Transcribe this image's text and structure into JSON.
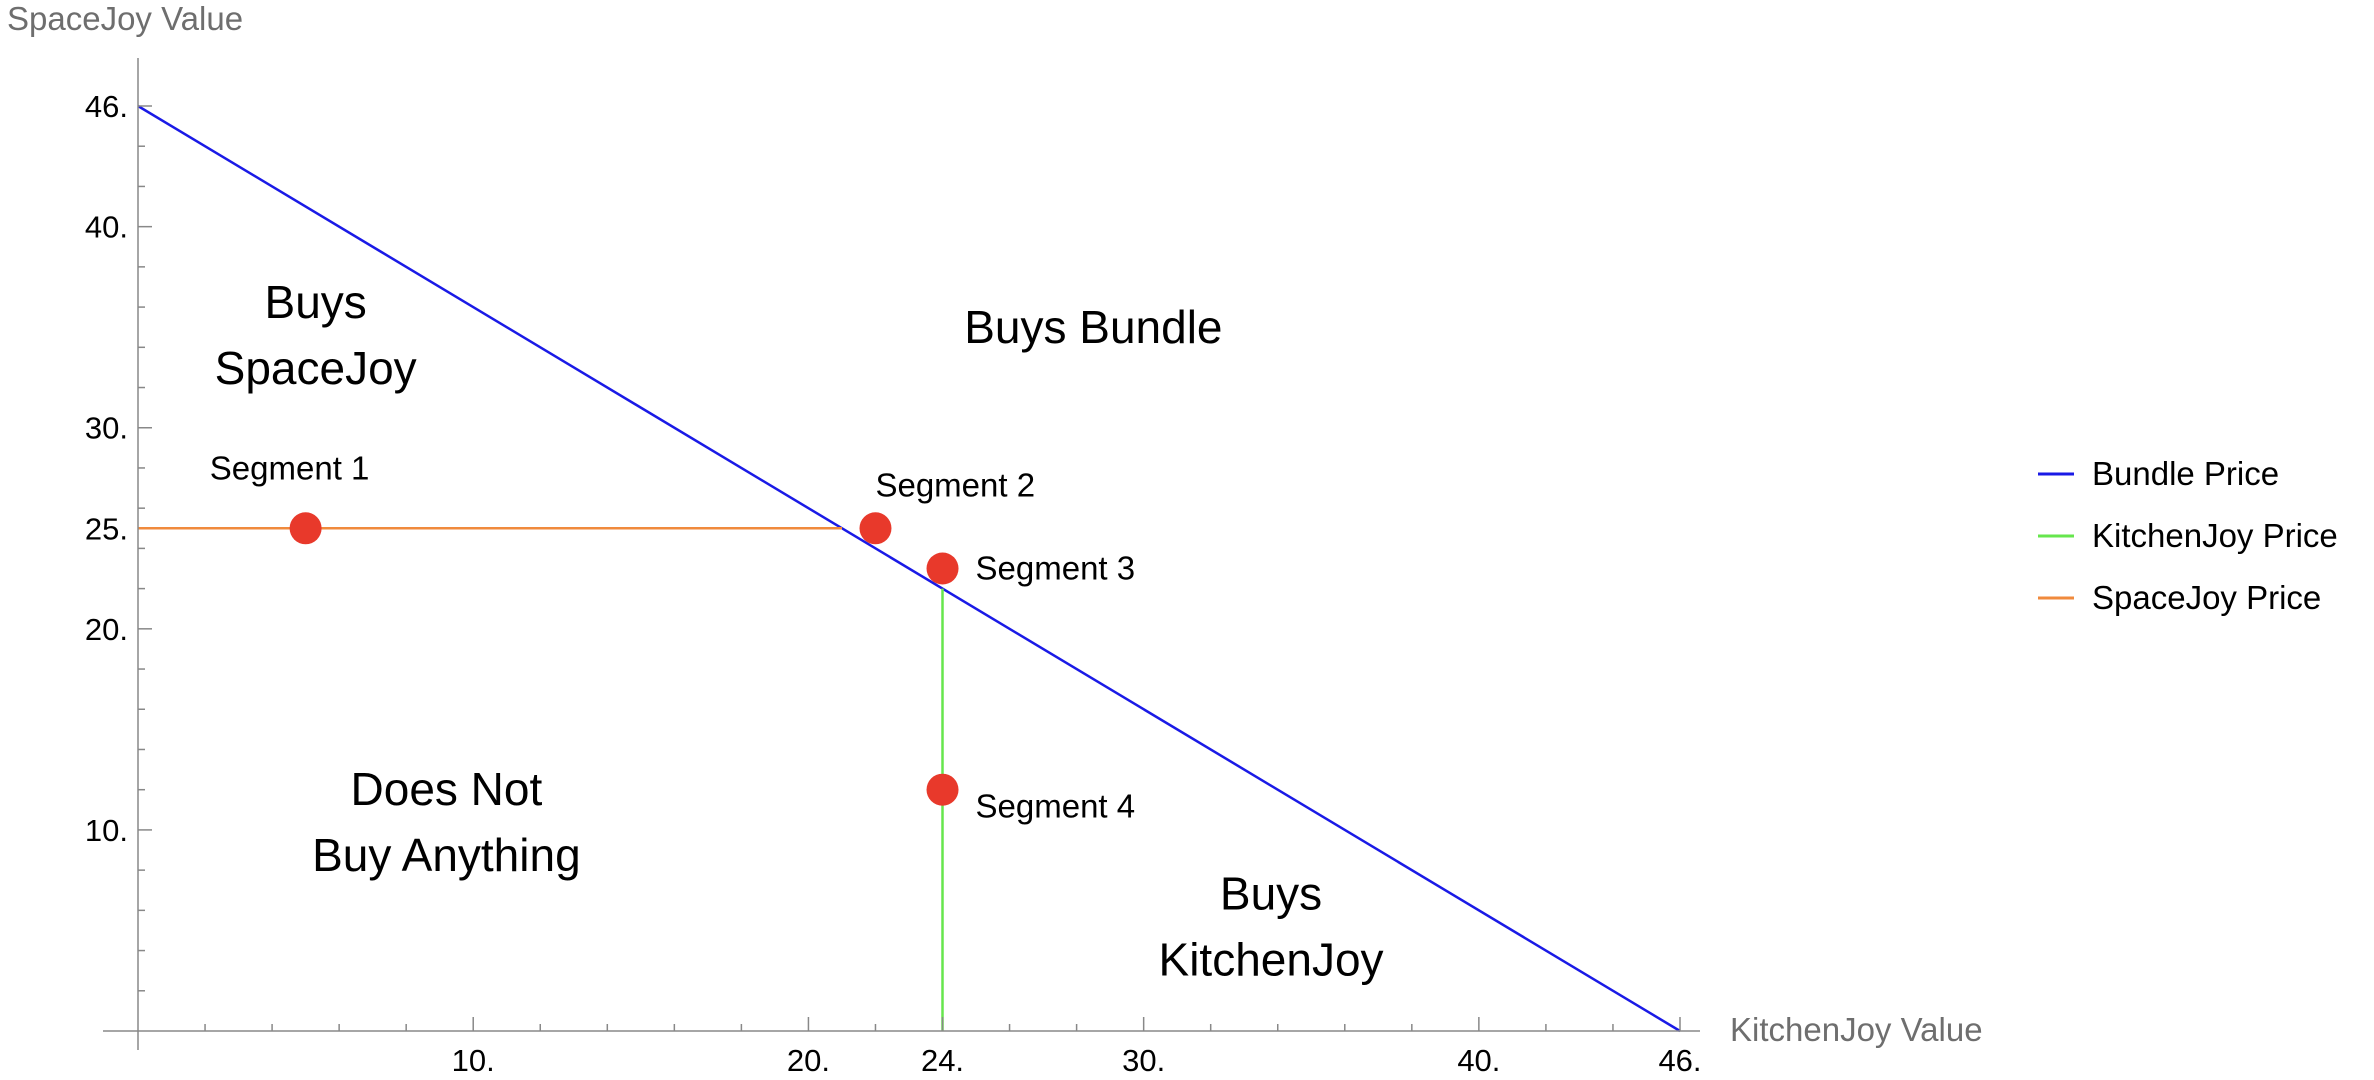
{
  "chart_data": {
    "type": "line",
    "xlabel": "KitchenJoy Value",
    "ylabel": "SpaceJoy Value",
    "xlim": [
      0,
      46
    ],
    "ylim": [
      0,
      46
    ],
    "x_ticks": [
      {
        "value": 10,
        "label": "10."
      },
      {
        "value": 20,
        "label": "20."
      },
      {
        "value": 24,
        "label": "24."
      },
      {
        "value": 30,
        "label": "30."
      },
      {
        "value": 40,
        "label": "40."
      },
      {
        "value": 46,
        "label": "46."
      }
    ],
    "y_ticks": [
      {
        "value": 10,
        "label": "10."
      },
      {
        "value": 20,
        "label": "20."
      },
      {
        "value": 25,
        "label": "25."
      },
      {
        "value": 30,
        "label": "30."
      },
      {
        "value": 40,
        "label": "40."
      },
      {
        "value": 46,
        "label": "46."
      }
    ],
    "series": [
      {
        "name": "Bundle Price",
        "color": "#1a1ae6",
        "x": [
          0,
          46
        ],
        "y": [
          46,
          0
        ]
      },
      {
        "name": "KitchenJoy Price",
        "color": "#66e64d",
        "x": [
          24,
          24
        ],
        "y": [
          0,
          22
        ]
      },
      {
        "name": "SpaceJoy Price",
        "color": "#f08a3c",
        "x": [
          0,
          21
        ],
        "y": [
          25,
          25
        ]
      }
    ],
    "points": [
      {
        "label": "Segment 1",
        "x": 5,
        "y": 25
      },
      {
        "label": "Segment 2",
        "x": 22,
        "y": 25
      },
      {
        "label": "Segment 3",
        "x": 24,
        "y": 23
      },
      {
        "label": "Segment 4",
        "x": 24,
        "y": 12
      }
    ],
    "point_color": "#e8392b",
    "regions": [
      {
        "lines": [
          "Buys",
          "SpaceJoy"
        ],
        "x": 5.3,
        "y": 34.6
      },
      {
        "lines": [
          "Buys Bundle"
        ],
        "x": 28.5,
        "y": 35
      },
      {
        "lines": [
          "Does Not",
          "Buy Anything"
        ],
        "x": 9.2,
        "y": 10.4
      },
      {
        "lines": [
          "Buys",
          "KitchenJoy"
        ],
        "x": 33.8,
        "y": 5.2
      }
    ],
    "legend_position": "right"
  }
}
